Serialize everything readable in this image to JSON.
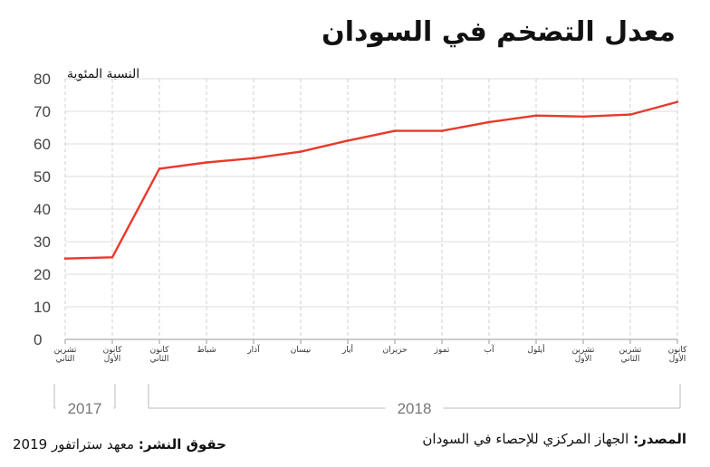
{
  "title": "معدل التضخم في السودان",
  "chart_data": {
    "type": "line",
    "ylabel": "النسبة المئوية",
    "ylim": [
      0,
      80
    ],
    "yticks": [
      0,
      10,
      20,
      30,
      40,
      50,
      60,
      70,
      80
    ],
    "categories": [
      [
        "تشرين",
        "الثاني"
      ],
      [
        "كانون",
        "الأول"
      ],
      [
        "كانون",
        "الثاني"
      ],
      [
        "شباط"
      ],
      [
        "آذار"
      ],
      [
        "نيسان"
      ],
      [
        "أيار"
      ],
      [
        "حزيران"
      ],
      [
        "تموز"
      ],
      [
        "آب"
      ],
      [
        "أيلول"
      ],
      [
        "تشرين",
        "الأول"
      ],
      [
        "تشرين",
        "الثاني"
      ],
      [
        "كانون",
        "الأول"
      ]
    ],
    "values": [
      24.8,
      25.2,
      52.4,
      54.3,
      55.6,
      57.6,
      61.0,
      64.0,
      64.0,
      66.7,
      68.7,
      68.4,
      69.0,
      72.9
    ],
    "years": [
      {
        "label": "2017",
        "from": 0,
        "to": 1
      },
      {
        "label": "2018",
        "from": 2,
        "to": 13
      }
    ],
    "line_color": "#e8392b",
    "grid": true
  },
  "footer": {
    "source_label": "المصدر:",
    "source_text": "الجهاز المركزي للإحصاء في السودان",
    "copyright_label": "حقوق النشر:",
    "copyright_text": "معهد ستراتفور 2019"
  }
}
